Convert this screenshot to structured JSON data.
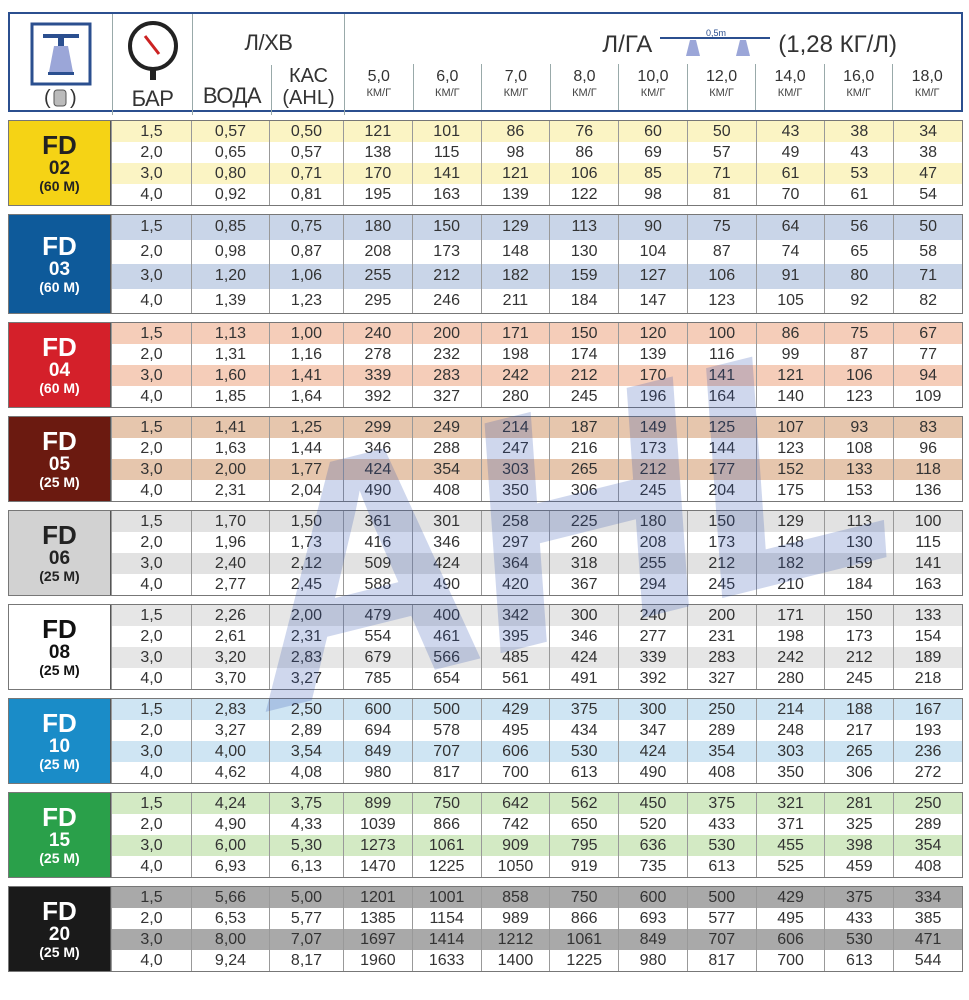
{
  "header": {
    "lhv": "Л/ХВ",
    "lga": "Л/ГА",
    "spacing": "0,5m",
    "density": "(1,28 КГ/Л)",
    "bar": "БАР",
    "water": "ВОДА",
    "kas": "КАС",
    "kas2": "(AHL)",
    "speeds": [
      "5,0",
      "6,0",
      "7,0",
      "8,0",
      "10,0",
      "12,0",
      "14,0",
      "16,0",
      "18,0"
    ],
    "speed_unit": "КМ/Г",
    "filter_icon": "nozzle-filter-icon",
    "gauge_icon": "pressure-gauge-icon"
  },
  "watermark": "AHL",
  "groups": [
    {
      "name": "FD",
      "size": "02",
      "dist": "(60 M)",
      "color": "#f5d315",
      "text": "#222",
      "stripe": "#fbf4c4",
      "rows": [
        [
          "1,5",
          "0,57",
          "0,50",
          "121",
          "101",
          "86",
          "76",
          "60",
          "50",
          "43",
          "38",
          "34"
        ],
        [
          "2,0",
          "0,65",
          "0,57",
          "138",
          "115",
          "98",
          "86",
          "69",
          "57",
          "49",
          "43",
          "38"
        ],
        [
          "3,0",
          "0,80",
          "0,71",
          "170",
          "141",
          "121",
          "106",
          "85",
          "71",
          "61",
          "53",
          "47"
        ],
        [
          "4,0",
          "0,92",
          "0,81",
          "195",
          "163",
          "139",
          "122",
          "98",
          "81",
          "70",
          "61",
          "54"
        ]
      ]
    },
    {
      "name": "FD",
      "size": "03",
      "dist": "(60 M)",
      "color": "#0e5a9a",
      "text": "#fff",
      "stripe": "#c9d5e8",
      "tall": true,
      "rows": [
        [
          "1,5",
          "0,85",
          "0,75",
          "180",
          "150",
          "129",
          "113",
          "90",
          "75",
          "64",
          "56",
          "50"
        ],
        [
          "2,0",
          "0,98",
          "0,87",
          "208",
          "173",
          "148",
          "130",
          "104",
          "87",
          "74",
          "65",
          "58"
        ],
        [
          "3,0",
          "1,20",
          "1,06",
          "255",
          "212",
          "182",
          "159",
          "127",
          "106",
          "91",
          "80",
          "71"
        ],
        [
          "4,0",
          "1,39",
          "1,23",
          "295",
          "246",
          "211",
          "184",
          "147",
          "123",
          "105",
          "92",
          "82"
        ]
      ]
    },
    {
      "name": "FD",
      "size": "04",
      "dist": "(60 M)",
      "color": "#d4202a",
      "text": "#fff",
      "stripe": "#f5cdb9",
      "rows": [
        [
          "1,5",
          "1,13",
          "1,00",
          "240",
          "200",
          "171",
          "150",
          "120",
          "100",
          "86",
          "75",
          "67"
        ],
        [
          "2,0",
          "1,31",
          "1,16",
          "278",
          "232",
          "198",
          "174",
          "139",
          "116",
          "99",
          "87",
          "77"
        ],
        [
          "3,0",
          "1,60",
          "1,41",
          "339",
          "283",
          "242",
          "212",
          "170",
          "141",
          "121",
          "106",
          "94"
        ],
        [
          "4,0",
          "1,85",
          "1,64",
          "392",
          "327",
          "280",
          "245",
          "196",
          "164",
          "140",
          "123",
          "109"
        ]
      ]
    },
    {
      "name": "FD",
      "size": "05",
      "dist": "(25 M)",
      "color": "#6b1a10",
      "text": "#fff",
      "stripe": "#e6c6ad",
      "rows": [
        [
          "1,5",
          "1,41",
          "1,25",
          "299",
          "249",
          "214",
          "187",
          "149",
          "125",
          "107",
          "93",
          "83"
        ],
        [
          "2,0",
          "1,63",
          "1,44",
          "346",
          "288",
          "247",
          "216",
          "173",
          "144",
          "123",
          "108",
          "96"
        ],
        [
          "3,0",
          "2,00",
          "1,77",
          "424",
          "354",
          "303",
          "265",
          "212",
          "177",
          "152",
          "133",
          "118"
        ],
        [
          "4,0",
          "2,31",
          "2,04",
          "490",
          "408",
          "350",
          "306",
          "245",
          "204",
          "175",
          "153",
          "136"
        ]
      ]
    },
    {
      "name": "FD",
      "size": "06",
      "dist": "(25 M)",
      "color": "#d2d2d2",
      "text": "#222",
      "stripe": "#e2e2e2",
      "rows": [
        [
          "1,5",
          "1,70",
          "1,50",
          "361",
          "301",
          "258",
          "225",
          "180",
          "150",
          "129",
          "113",
          "100"
        ],
        [
          "2,0",
          "1,96",
          "1,73",
          "416",
          "346",
          "297",
          "260",
          "208",
          "173",
          "148",
          "130",
          "115"
        ],
        [
          "3,0",
          "2,40",
          "2,12",
          "509",
          "424",
          "364",
          "318",
          "255",
          "212",
          "182",
          "159",
          "141"
        ],
        [
          "4,0",
          "2,77",
          "2,45",
          "588",
          "490",
          "420",
          "367",
          "294",
          "245",
          "210",
          "184",
          "163"
        ]
      ]
    },
    {
      "name": "FD",
      "size": "08",
      "dist": "(25 M)",
      "color": "#ffffff",
      "text": "#111",
      "stripe": "#e6e6e6",
      "rows": [
        [
          "1,5",
          "2,26",
          "2,00",
          "479",
          "400",
          "342",
          "300",
          "240",
          "200",
          "171",
          "150",
          "133"
        ],
        [
          "2,0",
          "2,61",
          "2,31",
          "554",
          "461",
          "395",
          "346",
          "277",
          "231",
          "198",
          "173",
          "154"
        ],
        [
          "3,0",
          "3,20",
          "2,83",
          "679",
          "566",
          "485",
          "424",
          "339",
          "283",
          "242",
          "212",
          "189"
        ],
        [
          "4,0",
          "3,70",
          "3,27",
          "785",
          "654",
          "561",
          "491",
          "392",
          "327",
          "280",
          "245",
          "218"
        ]
      ]
    },
    {
      "name": "FD",
      "size": "10",
      "dist": "(25 M)",
      "color": "#1a8cc8",
      "text": "#fff",
      "stripe": "#cfe5f3",
      "rows": [
        [
          "1,5",
          "2,83",
          "2,50",
          "600",
          "500",
          "429",
          "375",
          "300",
          "250",
          "214",
          "188",
          "167"
        ],
        [
          "2,0",
          "3,27",
          "2,89",
          "694",
          "578",
          "495",
          "434",
          "347",
          "289",
          "248",
          "217",
          "193"
        ],
        [
          "3,0",
          "4,00",
          "3,54",
          "849",
          "707",
          "606",
          "530",
          "424",
          "354",
          "303",
          "265",
          "236"
        ],
        [
          "4,0",
          "4,62",
          "4,08",
          "980",
          "817",
          "700",
          "613",
          "490",
          "408",
          "350",
          "306",
          "272"
        ]
      ]
    },
    {
      "name": "FD",
      "size": "15",
      "dist": "(25 M)",
      "color": "#2aa04a",
      "text": "#fff",
      "stripe": "#d3eac4",
      "rows": [
        [
          "1,5",
          "4,24",
          "3,75",
          "899",
          "750",
          "642",
          "562",
          "450",
          "375",
          "321",
          "281",
          "250"
        ],
        [
          "2,0",
          "4,90",
          "4,33",
          "1039",
          "866",
          "742",
          "650",
          "520",
          "433",
          "371",
          "325",
          "289"
        ],
        [
          "3,0",
          "6,00",
          "5,30",
          "1273",
          "1061",
          "909",
          "795",
          "636",
          "530",
          "455",
          "398",
          "354"
        ],
        [
          "4,0",
          "6,93",
          "6,13",
          "1470",
          "1225",
          "1050",
          "919",
          "735",
          "613",
          "525",
          "459",
          "408"
        ]
      ]
    },
    {
      "name": "FD",
      "size": "20",
      "dist": "(25 M)",
      "color": "#1a1a1a",
      "text": "#fff",
      "stripe": "#a9a9a9",
      "rows": [
        [
          "1,5",
          "5,66",
          "5,00",
          "1201",
          "1001",
          "858",
          "750",
          "600",
          "500",
          "429",
          "375",
          "334"
        ],
        [
          "2,0",
          "6,53",
          "5,77",
          "1385",
          "1154",
          "989",
          "866",
          "693",
          "577",
          "495",
          "433",
          "385"
        ],
        [
          "3,0",
          "8,00",
          "7,07",
          "1697",
          "1414",
          "1212",
          "1061",
          "849",
          "707",
          "606",
          "530",
          "471"
        ],
        [
          "4,0",
          "9,24",
          "8,17",
          "1960",
          "1633",
          "1400",
          "1225",
          "980",
          "817",
          "700",
          "613",
          "544"
        ]
      ]
    }
  ]
}
